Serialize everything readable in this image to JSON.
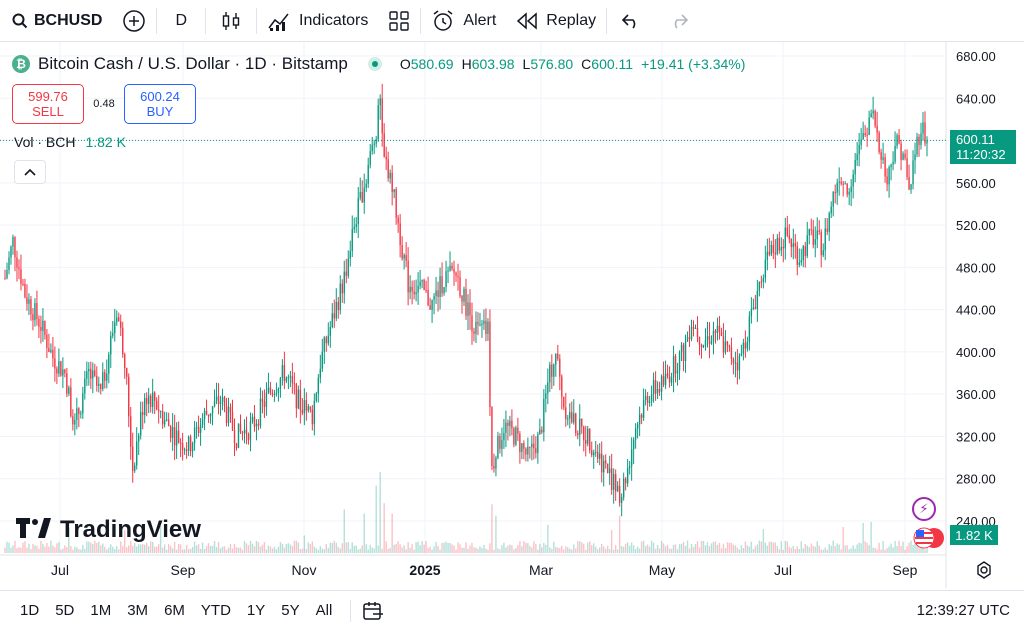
{
  "toolbar": {
    "symbol": "BCHUSD",
    "interval": "D",
    "indicators_label": "Indicators",
    "alert_label": "Alert",
    "replay_label": "Replay"
  },
  "legend": {
    "coin_glyph": "₿",
    "title": "Bitcoin Cash / U.S. Dollar · 1D · Bitstamp",
    "open_label": "O",
    "open": "580.69",
    "high_label": "H",
    "high": "603.98",
    "low_label": "L",
    "low": "576.80",
    "close_label": "C",
    "close": "600.11",
    "change": "+19.41 (+3.34%)"
  },
  "trade": {
    "sell_price": "599.76",
    "sell_label": "SELL",
    "spread": "0.48",
    "buy_price": "600.24",
    "buy_label": "BUY"
  },
  "volume_legend": {
    "label": "Vol · BCH",
    "value": "1.82 K"
  },
  "watermark": "TradingView",
  "price_tag": {
    "price": "600.11",
    "countdown": "11:20:32"
  },
  "volume_tag": "1.82 K",
  "bottom": {
    "ranges": [
      "1D",
      "5D",
      "1M",
      "3M",
      "6M",
      "YTD",
      "1Y",
      "5Y",
      "All"
    ],
    "clock": "12:39:27 UTC"
  },
  "colors": {
    "up": "#089981",
    "down": "#f23645",
    "accent": "#2962ff",
    "grid": "#f0f3fa"
  },
  "chart_data": {
    "type": "candlestick",
    "ylim": [
      220,
      690
    ],
    "yticks": [
      680,
      640,
      600,
      560,
      520,
      480,
      440,
      400,
      360,
      320,
      280,
      240
    ],
    "ytick_labels": [
      "680.00",
      "640.00",
      "600.00",
      "560.00",
      "520.00",
      "480.00",
      "440.00",
      "400.00",
      "360.00",
      "320.00",
      "280.00",
      "240.00"
    ],
    "xtick_labels": [
      "Jul",
      "Sep",
      "Nov",
      "2025",
      "Mar",
      "May",
      "Jul",
      "Sep"
    ],
    "current_price": 600.11,
    "close_anchors": [
      [
        0,
        470
      ],
      [
        4,
        505
      ],
      [
        10,
        455
      ],
      [
        18,
        425
      ],
      [
        24,
        395
      ],
      [
        30,
        380
      ],
      [
        35,
        330
      ],
      [
        42,
        380
      ],
      [
        48,
        360
      ],
      [
        52,
        400
      ],
      [
        56,
        440
      ],
      [
        60,
        395
      ],
      [
        64,
        290
      ],
      [
        70,
        360
      ],
      [
        75,
        355
      ],
      [
        80,
        335
      ],
      [
        86,
        320
      ],
      [
        92,
        310
      ],
      [
        100,
        340
      ],
      [
        108,
        355
      ],
      [
        116,
        320
      ],
      [
        124,
        330
      ],
      [
        132,
        360
      ],
      [
        140,
        380
      ],
      [
        148,
        350
      ],
      [
        154,
        340
      ],
      [
        158,
        390
      ],
      [
        164,
        430
      ],
      [
        170,
        470
      ],
      [
        175,
        520
      ],
      [
        180,
        560
      ],
      [
        185,
        600
      ],
      [
        188,
        635
      ],
      [
        190,
        580
      ],
      [
        194,
        555
      ],
      [
        198,
        510
      ],
      [
        202,
        465
      ],
      [
        208,
        460
      ],
      [
        214,
        445
      ],
      [
        220,
        470
      ],
      [
        226,
        475
      ],
      [
        230,
        450
      ],
      [
        236,
        420
      ],
      [
        242,
        420
      ],
      [
        244,
        290
      ],
      [
        250,
        330
      ],
      [
        256,
        320
      ],
      [
        262,
        300
      ],
      [
        268,
        320
      ],
      [
        272,
        370
      ],
      [
        276,
        400
      ],
      [
        280,
        350
      ],
      [
        286,
        330
      ],
      [
        292,
        320
      ],
      [
        298,
        300
      ],
      [
        304,
        280
      ],
      [
        308,
        260
      ],
      [
        312,
        290
      ],
      [
        316,
        330
      ],
      [
        322,
        360
      ],
      [
        330,
        370
      ],
      [
        336,
        390
      ],
      [
        340,
        400
      ],
      [
        344,
        430
      ],
      [
        350,
        410
      ],
      [
        356,
        420
      ],
      [
        362,
        400
      ],
      [
        368,
        390
      ],
      [
        372,
        420
      ],
      [
        376,
        450
      ],
      [
        380,
        480
      ],
      [
        386,
        500
      ],
      [
        392,
        510
      ],
      [
        398,
        490
      ],
      [
        404,
        510
      ],
      [
        410,
        500
      ],
      [
        414,
        540
      ],
      [
        418,
        570
      ],
      [
        422,
        550
      ],
      [
        426,
        580
      ],
      [
        430,
        600
      ],
      [
        434,
        630
      ],
      [
        438,
        600
      ],
      [
        442,
        560
      ],
      [
        446,
        600
      ],
      [
        450,
        590
      ],
      [
        453,
        550
      ],
      [
        456,
        590
      ],
      [
        459,
        615
      ],
      [
        462,
        600
      ]
    ],
    "volume": {
      "ylim": [
        0,
        8000
      ],
      "spikes": [
        [
          32,
          2400
        ],
        [
          60,
          2200
        ],
        [
          78,
          2600
        ],
        [
          150,
          1700
        ],
        [
          170,
          4200
        ],
        [
          180,
          3800
        ],
        [
          186,
          6500
        ],
        [
          188,
          7800
        ],
        [
          190,
          4800
        ],
        [
          194,
          3800
        ],
        [
          244,
          4700
        ],
        [
          246,
          3600
        ],
        [
          272,
          2700
        ],
        [
          304,
          2200
        ],
        [
          308,
          3600
        ],
        [
          430,
          2900
        ],
        [
          434,
          3000
        ],
        [
          380,
          2300
        ],
        [
          420,
          2500
        ]
      ],
      "last": 1820
    }
  }
}
